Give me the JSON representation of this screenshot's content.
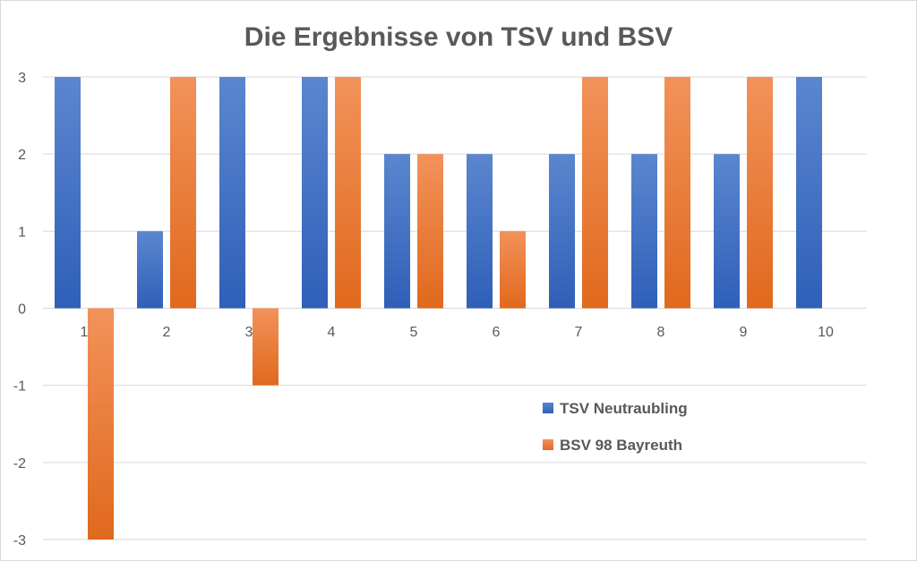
{
  "chart_data": {
    "type": "bar",
    "title": "Die Ergebnisse von TSV und BSV",
    "categories": [
      "1",
      "2",
      "3",
      "4",
      "5",
      "6",
      "7",
      "8",
      "9",
      "10"
    ],
    "series": [
      {
        "name": "TSV Neutraubling",
        "values": [
          3,
          1,
          3,
          3,
          2,
          2,
          2,
          2,
          2,
          3
        ],
        "color": "#4472c4"
      },
      {
        "name": "BSV 98 Bayreuth",
        "values": [
          -3,
          3,
          -1,
          3,
          2,
          1,
          3,
          3,
          3,
          0
        ],
        "color": "#ed7d31"
      }
    ],
    "ylim": [
      -3,
      3
    ],
    "yticks": [
      "3",
      "2",
      "1",
      "0",
      "-1",
      "-2",
      "-3"
    ],
    "grid": true,
    "legend": "inside-right"
  }
}
